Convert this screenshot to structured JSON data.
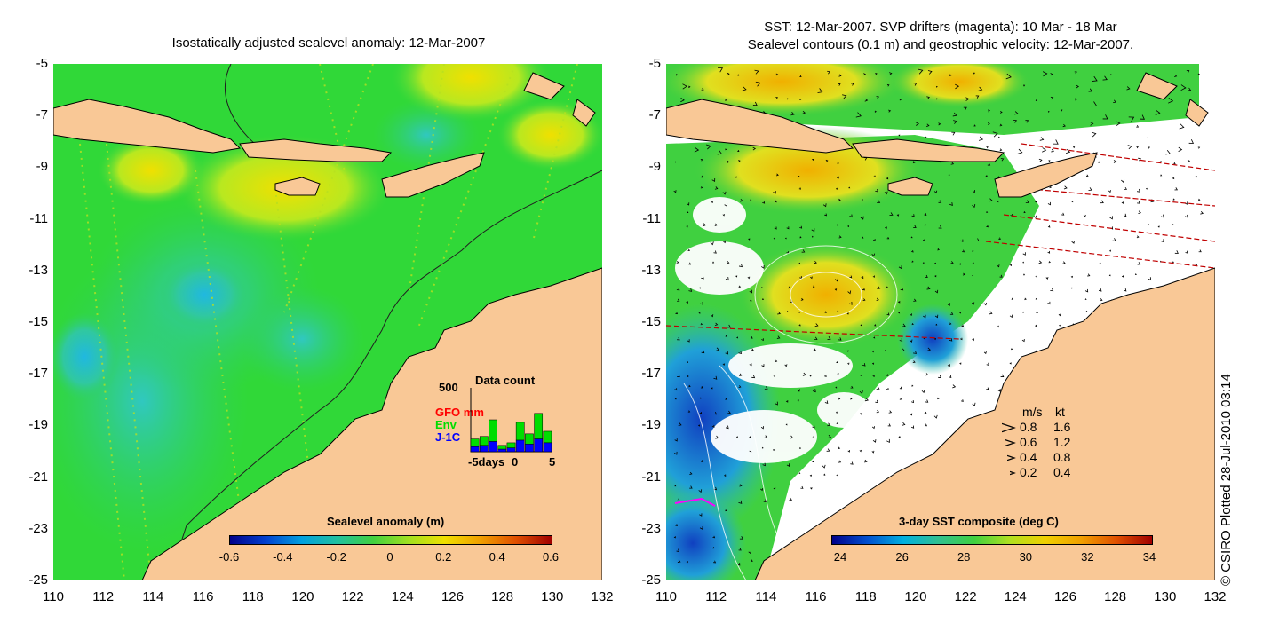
{
  "left_panel": {
    "title": "Isostatically adjusted sealevel anomaly: 12-Mar-2007",
    "colorbar_label": "Sealevel anomaly (m)",
    "colorbar_ticks": [
      "-0.6",
      "-0.4",
      "-0.2",
      "0",
      "0.2",
      "0.4",
      "0.6"
    ],
    "colorbar_colors": [
      "#00008b",
      "#0040d0",
      "#00a0e0",
      "#20c0a0",
      "#40d040",
      "#a0e020",
      "#f0e000",
      "#f0a000",
      "#e05000",
      "#a00000"
    ],
    "data_count": {
      "title": "Data count",
      "ymax_label": "500",
      "series": [
        {
          "name": "GFO mm",
          "color": "#ff0000"
        },
        {
          "name": "Env",
          "color": "#00dd00"
        },
        {
          "name": "J-1C",
          "color": "#0000ff"
        }
      ],
      "x_labels": [
        "-5days",
        "0",
        "5"
      ],
      "bars": [
        {
          "j1c": 40,
          "env": 60
        },
        {
          "j1c": 50,
          "env": 70
        },
        {
          "j1c": 80,
          "env": 170
        },
        {
          "j1c": 20,
          "env": 30
        },
        {
          "j1c": 30,
          "env": 40
        },
        {
          "j1c": 90,
          "env": 140
        },
        {
          "j1c": 60,
          "env": 80
        },
        {
          "j1c": 100,
          "env": 200
        },
        {
          "j1c": 70,
          "env": 90
        }
      ]
    }
  },
  "right_panel": {
    "title_line1": "SST: 12-Mar-2007. SVP drifters (magenta): 10 Mar - 18 Mar",
    "title_line2": "Sealevel contours (0.1 m) and geostrophic velocity: 12-Mar-2007.",
    "colorbar_label": "3-day SST composite (deg C)",
    "colorbar_ticks": [
      "24",
      "26",
      "28",
      "30",
      "32",
      "34"
    ],
    "colorbar_colors": [
      "#00008b",
      "#0050d0",
      "#00b0e0",
      "#30c090",
      "#40d040",
      "#b0e020",
      "#f0d000",
      "#f0a000",
      "#e05000",
      "#a00000"
    ],
    "speed_legend": {
      "header": [
        "m/s",
        "kt"
      ],
      "rows": [
        [
          "0.8",
          "1.6"
        ],
        [
          "0.6",
          "1.2"
        ],
        [
          "0.4",
          "0.8"
        ],
        [
          "0.2",
          "0.4"
        ]
      ]
    }
  },
  "axes": {
    "y_labels": [
      "-5",
      "-7",
      "-9",
      "-11",
      "-13",
      "-15",
      "-17",
      "-19",
      "-21",
      "-23",
      "-25"
    ],
    "x_labels": [
      "110",
      "112",
      "114",
      "116",
      "118",
      "120",
      "122",
      "124",
      "126",
      "128",
      "130",
      "132"
    ],
    "lat_range": [
      -25,
      -5
    ],
    "lon_range": [
      110,
      132
    ]
  },
  "credit": "© CSIRO Plotted 28-Jul-2010 03:14",
  "colors": {
    "land": "#f9c896",
    "ocean_left": "#30d830",
    "no_data": "#ffffff"
  }
}
